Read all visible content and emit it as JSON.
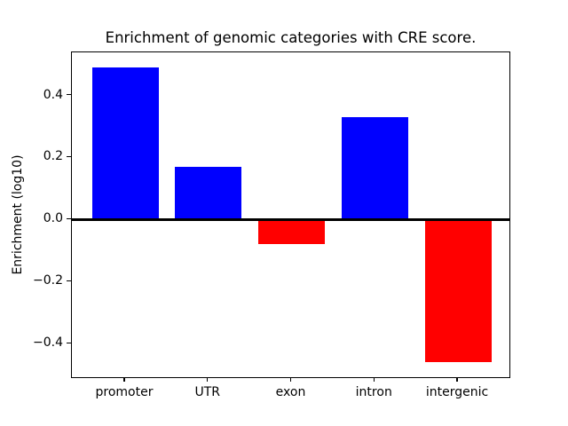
{
  "figure": {
    "title": "Enrichment of genomic categories with CRE score.",
    "ylabel": "Enrichment (log10)"
  },
  "chart_data": {
    "type": "bar",
    "title": "Enrichment of genomic categories with CRE score.",
    "xlabel": "",
    "ylabel": "Enrichment (log10)",
    "categories": [
      "promoter",
      "UTR",
      "exon",
      "intron",
      "intergenic"
    ],
    "values": [
      0.49,
      0.17,
      -0.08,
      0.33,
      -0.46
    ],
    "positive_color": "#0000ff",
    "negative_color": "#ff0000",
    "bar_colors": [
      "#0000ff",
      "#0000ff",
      "#ff0000",
      "#0000ff",
      "#ff0000"
    ],
    "yticks": [
      0.4,
      0.2,
      0.0,
      -0.2,
      -0.4
    ],
    "ytick_labels": [
      "0.4",
      "0.2",
      "0.0",
      "−0.2",
      "−0.4"
    ],
    "ylim": [
      -0.514,
      0.539
    ],
    "xlim": [
      -0.64,
      4.64
    ],
    "bar_width_fraction": 0.8,
    "grid": false,
    "legend": "none",
    "zero_line": true,
    "frame_color": "#000000",
    "background_color": "#ffffff"
  }
}
